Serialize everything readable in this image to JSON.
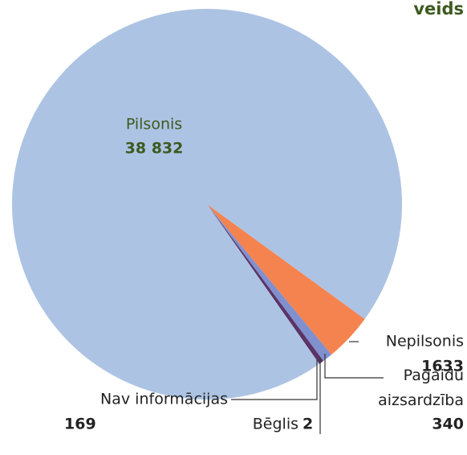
{
  "chart_data": {
    "type": "pie",
    "title": "veids",
    "categories": [
      "Nepilsonis",
      "Pagaidu aizsardzība",
      "Bēglis",
      "Nav informācijas",
      "Pilsonis"
    ],
    "values": [
      1633,
      340,
      2,
      169,
      38832
    ],
    "value_labels": [
      "1633",
      "340",
      "2",
      "169",
      "38 832"
    ],
    "colors": [
      "#f5834f",
      "#8090cf",
      "#4a4f8a",
      "#5a3466",
      "#adc3e4"
    ]
  }
}
